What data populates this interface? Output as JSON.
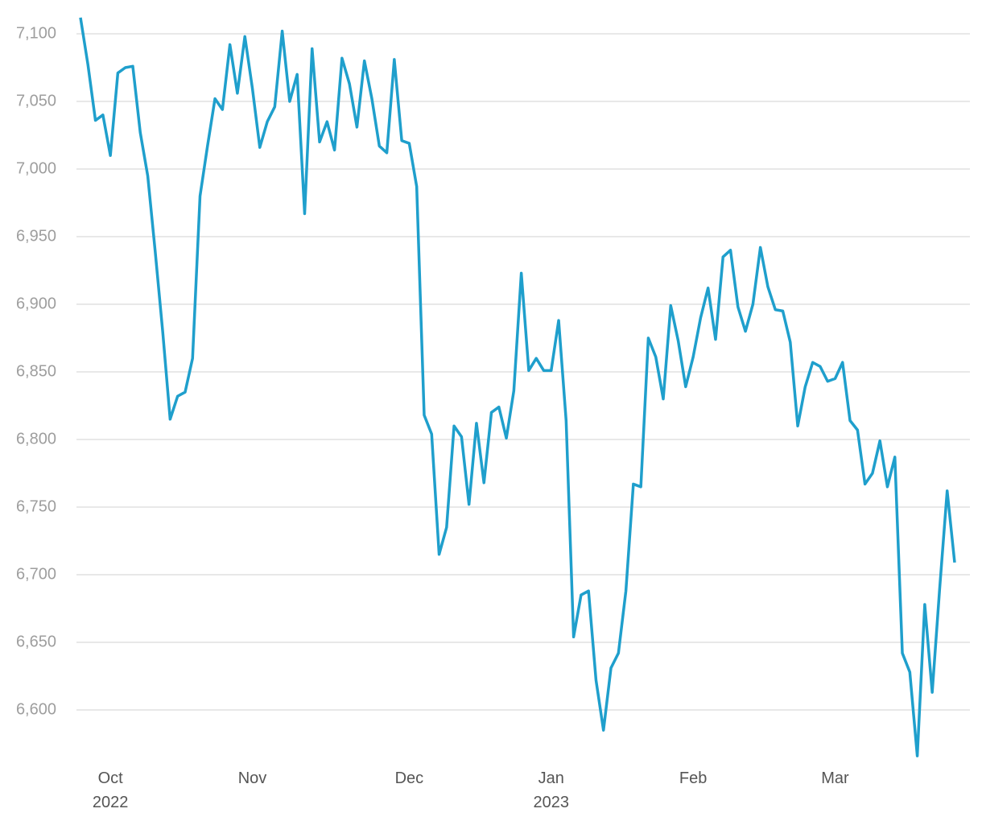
{
  "chart_data": {
    "type": "line",
    "categories": [
      null,
      null,
      null,
      null,
      "Oct\n2022",
      null,
      null,
      null,
      null,
      null,
      null,
      null,
      null,
      null,
      null,
      null,
      null,
      null,
      null,
      null,
      null,
      null,
      null,
      "Nov",
      null,
      null,
      null,
      null,
      null,
      null,
      null,
      null,
      null,
      null,
      null,
      null,
      null,
      null,
      null,
      null,
      null,
      null,
      null,
      null,
      "Dec",
      null,
      null,
      null,
      null,
      null,
      null,
      null,
      null,
      null,
      null,
      null,
      null,
      null,
      null,
      null,
      null,
      null,
      null,
      "Jan\n2023",
      null,
      null,
      null,
      null,
      null,
      null,
      null,
      null,
      null,
      null,
      null,
      null,
      null,
      null,
      null,
      null,
      null,
      null,
      "Feb",
      null,
      null,
      null,
      null,
      null,
      null,
      null,
      null,
      null,
      null,
      null,
      null,
      null,
      null,
      null,
      null,
      null,
      null,
      "Mar",
      null,
      null,
      null,
      null,
      null,
      null,
      null,
      null,
      null,
      null,
      null,
      null,
      null,
      null,
      null,
      null
    ],
    "values": [
      7112,
      7077,
      7036,
      7040,
      7010,
      7071,
      7075,
      7076,
      7027,
      6995,
      6939,
      6880,
      6815,
      6832,
      6835,
      6860,
      6980,
      7017,
      7052,
      7044,
      7092,
      7056,
      7098,
      7060,
      7016,
      7035,
      7046,
      7102,
      7050,
      7070,
      6967,
      7089,
      7020,
      7035,
      7014,
      7082,
      7063,
      7031,
      7080,
      7052,
      7017,
      7012,
      7081,
      7021,
      7019,
      6987,
      6818,
      6804,
      6715,
      6735,
      6810,
      6802,
      6752,
      6812,
      6768,
      6820,
      6824,
      6801,
      6836,
      6923,
      6851,
      6860,
      6851,
      6851,
      6888,
      6814,
      6654,
      6685,
      6688,
      6622,
      6585,
      6631,
      6642,
      6688,
      6767,
      6765,
      6875,
      6861,
      6830,
      6899,
      6873,
      6839,
      6861,
      6890,
      6912,
      6874,
      6935,
      6940,
      6898,
      6880,
      6900,
      6942,
      6913,
      6896,
      6895,
      6872,
      6810,
      6839,
      6857,
      6854,
      6843,
      6845,
      6857,
      6814,
      6807,
      6767,
      6775,
      6799,
      6765,
      6787,
      6642,
      6628,
      6566,
      6678,
      6613,
      6690,
      6762,
      6709
    ],
    "color": "#1f9fcc",
    "ylim": [
      6560,
      7115
    ],
    "yticks": [
      {
        "value": 6600,
        "label": "6,600"
      },
      {
        "value": 6650,
        "label": "6,650"
      },
      {
        "value": 6700,
        "label": "6,700"
      },
      {
        "value": 6750,
        "label": "6,750"
      },
      {
        "value": 6800,
        "label": "6,800"
      },
      {
        "value": 6850,
        "label": "6,850"
      },
      {
        "value": 6900,
        "label": "6,900"
      },
      {
        "value": 6950,
        "label": "6,950"
      },
      {
        "value": 7000,
        "label": "7,000"
      },
      {
        "value": 7050,
        "label": "7,050"
      },
      {
        "value": 7100,
        "label": "7,100"
      }
    ],
    "grid": true
  }
}
